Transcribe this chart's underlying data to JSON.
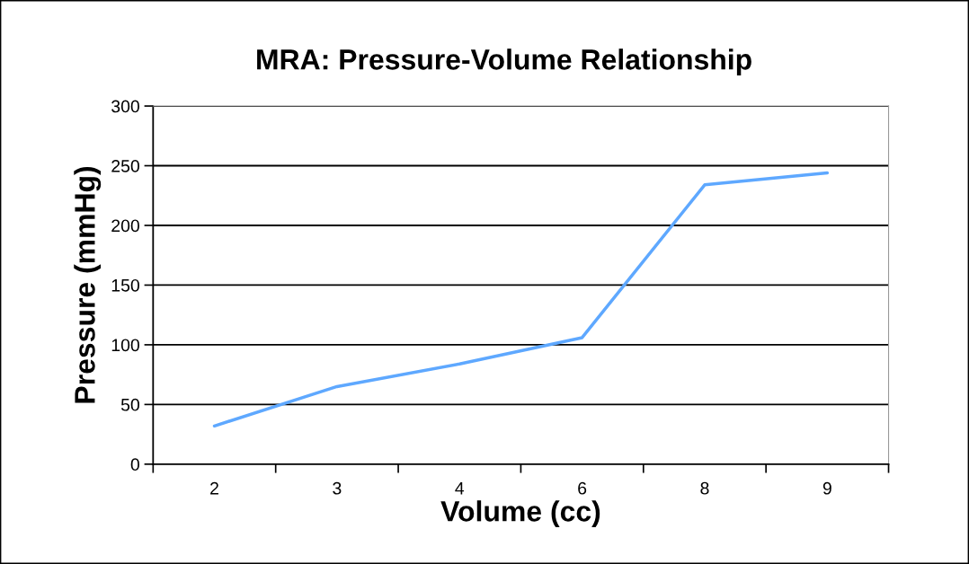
{
  "chart_data": {
    "type": "line",
    "title": "MRA: Pressure-Volume Relationship",
    "xlabel": "Volume (cc)",
    "ylabel": "Pressure (mmHg)",
    "categories": [
      "2",
      "3",
      "4",
      "6",
      "8",
      "9"
    ],
    "series": [
      {
        "color": "#5ea8ff",
        "values": [
          32,
          65,
          84,
          106,
          234,
          244
        ]
      }
    ],
    "ylim": [
      0,
      300
    ],
    "yticks": [
      0,
      50,
      100,
      150,
      200,
      250,
      300
    ],
    "grid": "y",
    "marker": "none",
    "line_style": "solid"
  }
}
